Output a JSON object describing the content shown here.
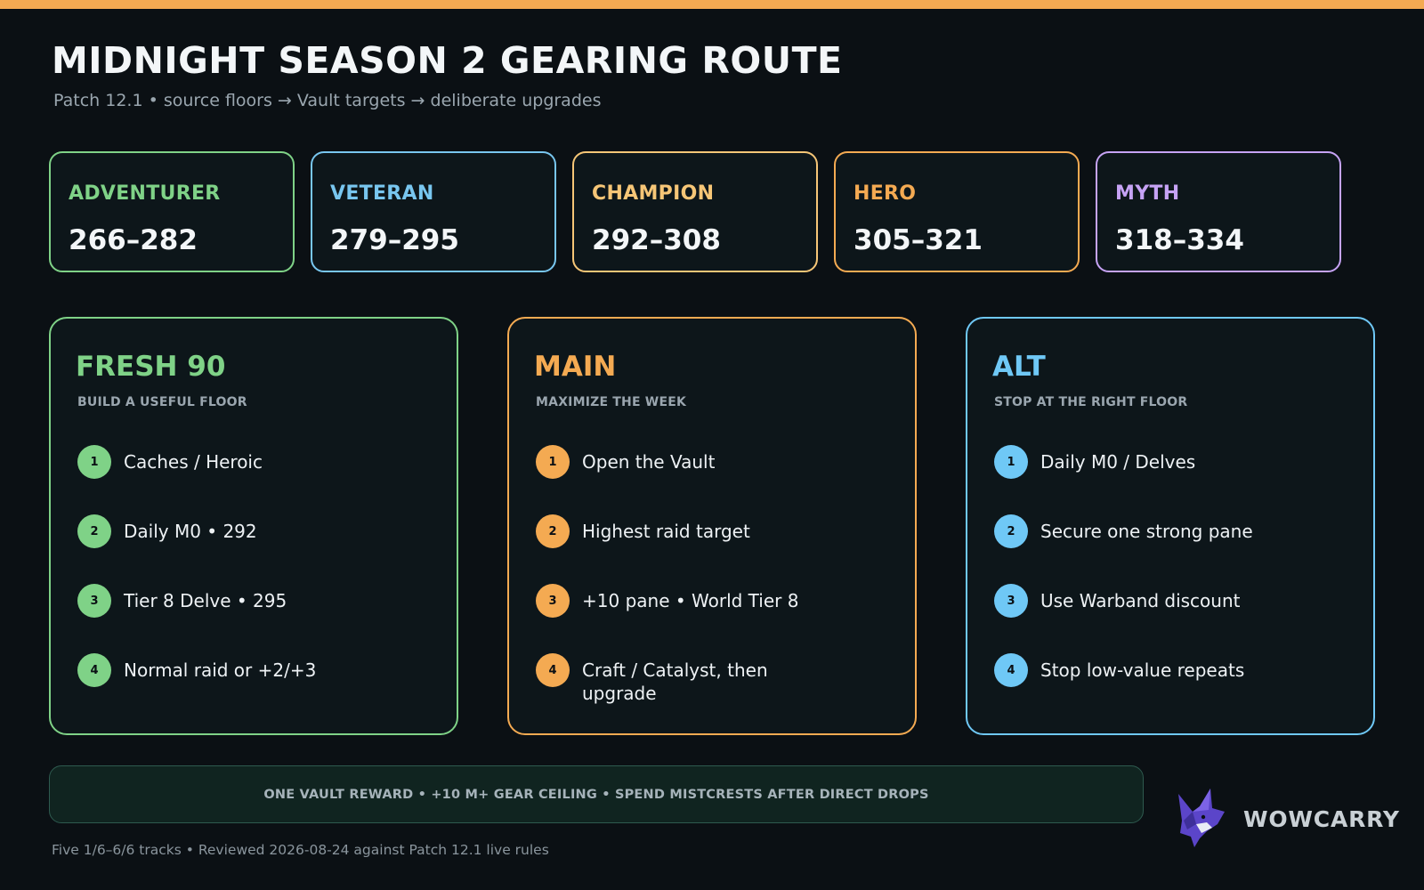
{
  "header": {
    "title": "MIDNIGHT SEASON 2 GEARING ROUTE",
    "subtitle": "Patch 12.1 • source floors → Vault targets → deliberate upgrades"
  },
  "tiers": [
    {
      "name": "ADVENTURER",
      "range": "266–282",
      "color": "#7fd287"
    },
    {
      "name": "VETERAN",
      "range": "279–295",
      "color": "#78c6ef"
    },
    {
      "name": "CHAMPION",
      "range": "292–308",
      "color": "#f6c677"
    },
    {
      "name": "HERO",
      "range": "305–321",
      "color": "#f4aa52"
    },
    {
      "name": "MYTH",
      "range": "318–334",
      "color": "#c6a3f5"
    }
  ],
  "paths": [
    {
      "title": "FRESH 90",
      "subtitle": "BUILD A USEFUL FLOOR",
      "color": "#7fd287",
      "steps": [
        {
          "num": "1",
          "text": "Caches / Heroic"
        },
        {
          "num": "2",
          "text": "Daily M0 • 292"
        },
        {
          "num": "3",
          "text": "Tier 8 Delve • 295"
        },
        {
          "num": "4",
          "text": "Normal raid or +2/+3"
        }
      ]
    },
    {
      "title": "MAIN",
      "subtitle": "MAXIMIZE THE WEEK",
      "color": "#f4aa52",
      "steps": [
        {
          "num": "1",
          "text": "Open the Vault"
        },
        {
          "num": "2",
          "text": "Highest raid target"
        },
        {
          "num": "3",
          "text": "+10 pane • World Tier 8"
        },
        {
          "num": "4",
          "text": "Craft / Catalyst, then upgrade"
        }
      ]
    },
    {
      "title": "ALT",
      "subtitle": "STOP AT THE RIGHT FLOOR",
      "color": "#6fc8f6",
      "steps": [
        {
          "num": "1",
          "text": "Daily M0 / Delves"
        },
        {
          "num": "2",
          "text": "Secure one strong pane"
        },
        {
          "num": "3",
          "text": "Use Warband discount"
        },
        {
          "num": "4",
          "text": "Stop low-value repeats"
        }
      ]
    }
  ],
  "banner": {
    "text": "ONE VAULT REWARD • +10 M+ GEAR CEILING • SPEND MISTCRESTS AFTER DIRECT DROPS"
  },
  "footer": {
    "note": "Five 1/6–6/6 tracks • Reviewed 2026-08-24 against Patch 12.1 live rules"
  },
  "brand": {
    "name": "WOWCARRY",
    "logo_icon": "fox-logo-icon"
  },
  "colors": {
    "background": "#0b1014",
    "accent_bar": "#f4aa52",
    "banner_border": "#2e5a4f"
  }
}
